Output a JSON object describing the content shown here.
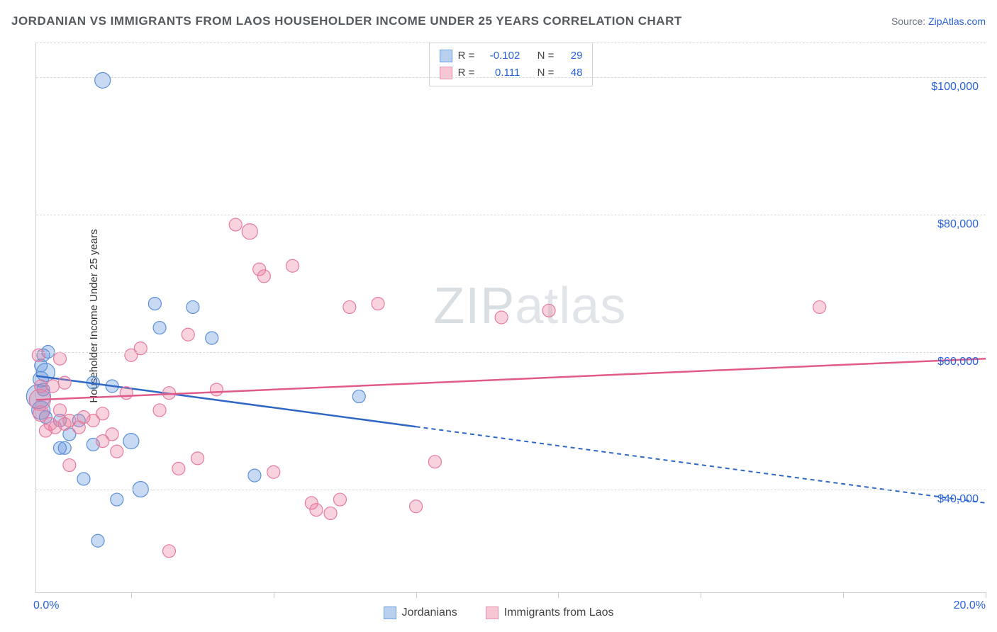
{
  "header": {
    "title": "JORDANIAN VS IMMIGRANTS FROM LAOS HOUSEHOLDER INCOME UNDER 25 YEARS CORRELATION CHART",
    "source_prefix": "Source: ",
    "source_link": "ZipAtlas.com"
  },
  "watermark": {
    "bold": "ZIP",
    "thin": "atlas"
  },
  "chart": {
    "type": "scatter",
    "ylabel": "Householder Income Under 25 years",
    "xlim": [
      0.0,
      20.0
    ],
    "ylim": [
      25000,
      105000
    ],
    "x_format": "percent",
    "y_format": "currency",
    "xlim_labels": {
      "min": "0.0%",
      "max": "20.0%"
    },
    "yticks": [
      40000,
      60000,
      80000,
      100000
    ],
    "ytick_labels": [
      "$40,000",
      "$60,000",
      "$80,000",
      "$100,000"
    ],
    "xticks": [
      2.0,
      5.0,
      8.0,
      11.0,
      14.0,
      17.0,
      20.0
    ],
    "grid_color": "#d8d8d8",
    "background_color": "#ffffff",
    "series": [
      {
        "id": "jordanians",
        "label": "Jordanians",
        "fill": "rgba(96,150,222,0.35)",
        "stroke": "#5b8fd6",
        "swatch_fill": "#b8d0ee",
        "swatch_stroke": "#6a9fe0",
        "R": "-0.102",
        "N": "29",
        "marker_radius": 9,
        "points": [
          [
            1.4,
            99500,
            11
          ],
          [
            0.1,
            58000,
            9
          ],
          [
            0.1,
            56000,
            11
          ],
          [
            0.15,
            54500,
            9
          ],
          [
            0.2,
            57000,
            13
          ],
          [
            0.05,
            53500,
            17
          ],
          [
            0.1,
            51500,
            13
          ],
          [
            0.2,
            50500,
            9
          ],
          [
            0.5,
            50000,
            9
          ],
          [
            0.25,
            60000,
            9
          ],
          [
            0.6,
            46000,
            9
          ],
          [
            0.7,
            48000,
            9
          ],
          [
            1.2,
            55500,
            9
          ],
          [
            1.6,
            55000,
            9
          ],
          [
            2.0,
            47000,
            11
          ],
          [
            2.5,
            67000,
            9
          ],
          [
            2.6,
            63500,
            9
          ],
          [
            3.3,
            66500,
            9
          ],
          [
            3.7,
            62000,
            9
          ],
          [
            2.2,
            40000,
            11
          ],
          [
            1.2,
            46500,
            9
          ],
          [
            1.0,
            41500,
            9
          ],
          [
            0.5,
            46000,
            9
          ],
          [
            0.9,
            50000,
            9
          ],
          [
            1.3,
            32500,
            9
          ],
          [
            1.7,
            38500,
            9
          ],
          [
            6.8,
            53500,
            9
          ],
          [
            0.15,
            59500,
            9
          ],
          [
            4.6,
            42000,
            9
          ]
        ],
        "trend": {
          "y_at_xmin": 56500,
          "y_at_xmax": 38000,
          "solid_until_x": 8.0,
          "color": "#2f68c4",
          "width": 2.5
        }
      },
      {
        "id": "laos",
        "label": "Immigrants from Laos",
        "fill": "rgba(235,130,160,0.35)",
        "stroke": "#e77aa0",
        "swatch_fill": "#f6c6d5",
        "swatch_stroke": "#e98fab",
        "R": "0.111",
        "N": "48",
        "marker_radius": 9,
        "points": [
          [
            0.05,
            59500,
            9
          ],
          [
            0.08,
            53000,
            15
          ],
          [
            0.1,
            51000,
            11
          ],
          [
            0.1,
            55000,
            9
          ],
          [
            0.2,
            48500,
            9
          ],
          [
            0.3,
            49500,
            9
          ],
          [
            0.4,
            49000,
            9
          ],
          [
            0.6,
            49500,
            9
          ],
          [
            0.7,
            50000,
            9
          ],
          [
            0.9,
            49000,
            9
          ],
          [
            1.0,
            50500,
            9
          ],
          [
            1.2,
            50000,
            9
          ],
          [
            1.4,
            51000,
            9
          ],
          [
            0.35,
            55000,
            9
          ],
          [
            0.6,
            55500,
            9
          ],
          [
            1.4,
            47000,
            9
          ],
          [
            1.6,
            48000,
            9
          ],
          [
            1.7,
            45500,
            9
          ],
          [
            1.9,
            54000,
            9
          ],
          [
            2.0,
            59500,
            9
          ],
          [
            2.2,
            60500,
            9
          ],
          [
            2.6,
            51500,
            9
          ],
          [
            2.8,
            54000,
            9
          ],
          [
            3.0,
            43000,
            9
          ],
          [
            3.2,
            62500,
            9
          ],
          [
            3.4,
            44500,
            9
          ],
          [
            3.8,
            54500,
            9
          ],
          [
            4.2,
            78500,
            9
          ],
          [
            4.5,
            77500,
            11
          ],
          [
            4.7,
            72000,
            9
          ],
          [
            4.8,
            71000,
            9
          ],
          [
            5.4,
            72500,
            9
          ],
          [
            5.8,
            38000,
            9
          ],
          [
            5.9,
            37000,
            9
          ],
          [
            6.2,
            36500,
            9
          ],
          [
            6.4,
            38500,
            9
          ],
          [
            6.6,
            66500,
            9
          ],
          [
            7.2,
            67000,
            9
          ],
          [
            8.0,
            37500,
            9
          ],
          [
            8.4,
            44000,
            9
          ],
          [
            9.8,
            65000,
            9
          ],
          [
            10.8,
            66000,
            9
          ],
          [
            16.5,
            66500,
            9
          ],
          [
            2.8,
            31000,
            9
          ],
          [
            0.7,
            43500,
            9
          ],
          [
            0.5,
            51500,
            9
          ],
          [
            0.5,
            59000,
            9
          ],
          [
            5.0,
            42500,
            9
          ]
        ],
        "trend": {
          "y_at_xmin": 53000,
          "y_at_xmax": 59000,
          "solid_until_x": 20.0,
          "color": "#e05a8a",
          "width": 2.5
        }
      }
    ]
  },
  "legend_top": {
    "R_label": "R =",
    "N_label": "N ="
  }
}
